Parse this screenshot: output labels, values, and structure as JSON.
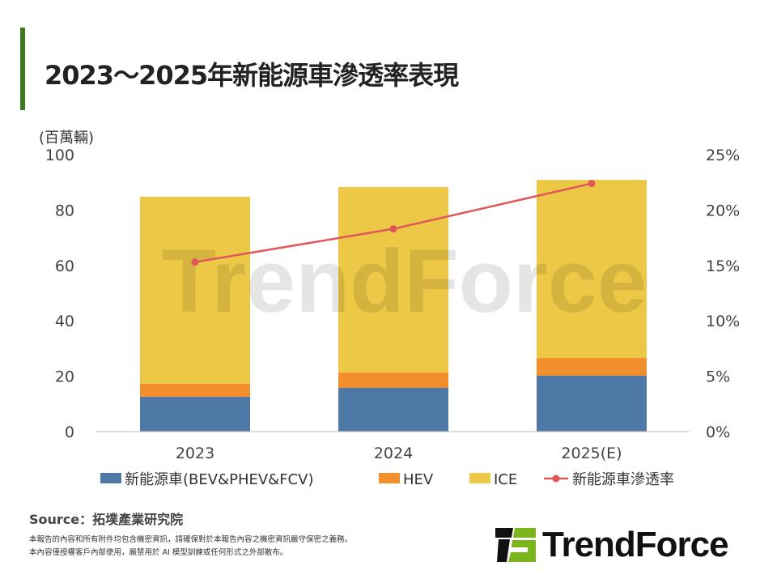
{
  "title": "2023～2025年新能源車滲透率表現",
  "chart_data": {
    "type": "bar",
    "stacked": true,
    "categories": [
      "2023",
      "2024",
      "2025(E)"
    ],
    "y_unit_label": "(百萬輛)",
    "ylim": [
      0,
      100
    ],
    "yticks": [
      "0",
      "20",
      "40",
      "60",
      "80",
      "100"
    ],
    "y2lim": [
      0,
      25
    ],
    "y2ticks": [
      "0%",
      "5%",
      "10%",
      "15%",
      "20%",
      "25%"
    ],
    "grid": false,
    "legend_position": "bottom",
    "series": [
      {
        "name": "新能源車(BEV&PHEV&FCV)",
        "type": "bar",
        "color": "#4e79a7",
        "values": [
          12.6,
          15.8,
          20.2
        ]
      },
      {
        "name": "HEV",
        "type": "bar",
        "color": "#f28e2b",
        "values": [
          4.7,
          5.5,
          6.4
        ]
      },
      {
        "name": "ICE",
        "type": "bar",
        "color": "#ecc846",
        "values": [
          67.5,
          67.0,
          64.3
        ]
      },
      {
        "name": "新能源車滲透率",
        "type": "line",
        "axis": "right",
        "color": "#e15759",
        "values": [
          15.3,
          18.3,
          22.4
        ]
      }
    ]
  },
  "watermark": "TrendForce",
  "source": "Source：拓墣產業研究院",
  "disclaimer": [
    "本報告的內容和所有附件均包含機密資訊，請確保對於本報告內容之機密資訊嚴守保密之義務。",
    "本內容僅授權客戶內部使用，嚴禁用於 AI 模型訓練或任何形式之外部散布。"
  ],
  "logo_text": "TrendForce",
  "colors": {
    "accent": "#3d7a1e",
    "logo_green": "#7ab51d"
  }
}
